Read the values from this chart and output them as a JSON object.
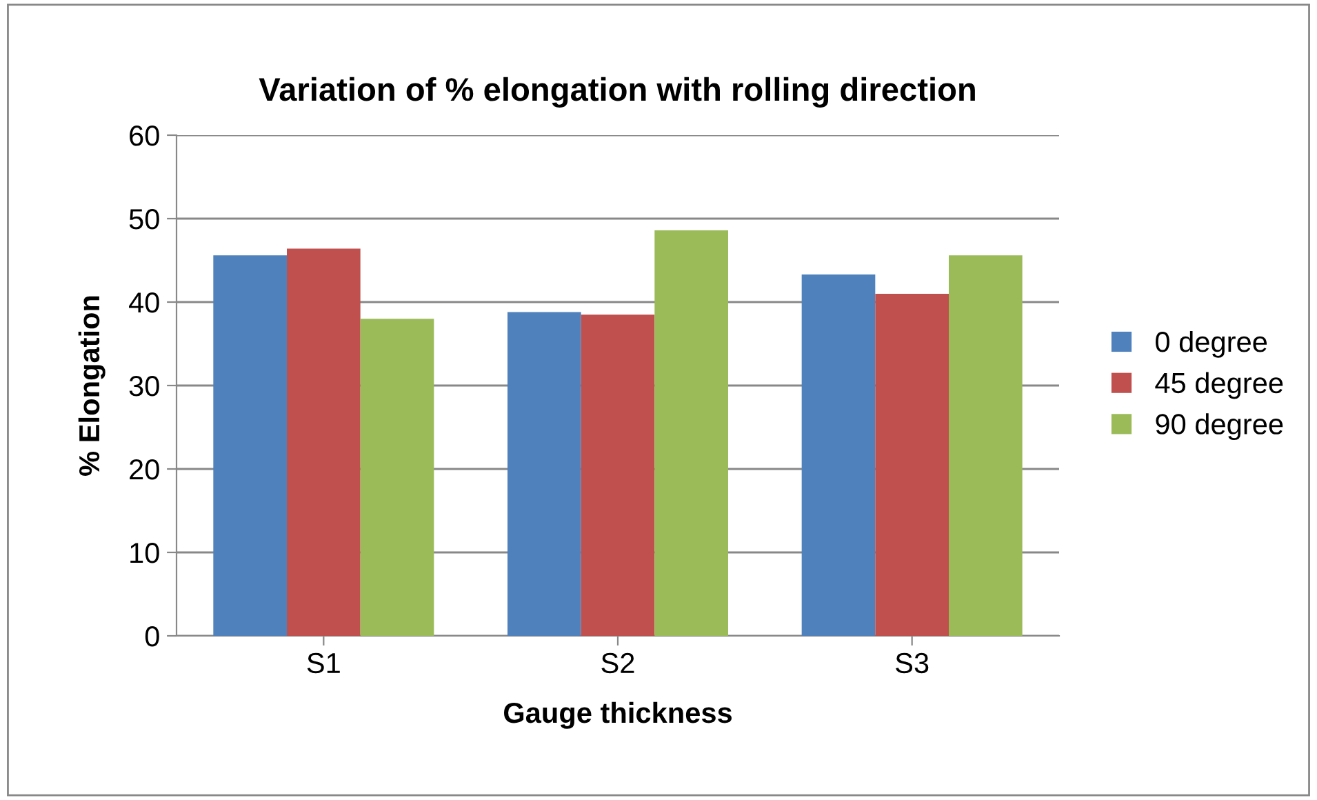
{
  "chart_data": {
    "type": "bar",
    "title": "Variation of % elongation with rolling direction",
    "xlabel": "Gauge thickness",
    "ylabel": "% Elongation",
    "categories": [
      "S1",
      "S2",
      "S3"
    ],
    "series": [
      {
        "name": "0 degree",
        "color": "#4f81bd",
        "values": [
          45.6,
          38.8,
          43.3
        ]
      },
      {
        "name": "45 degree",
        "color": "#c0504d",
        "values": [
          46.4,
          38.5,
          41.0
        ]
      },
      {
        "name": "90 degree",
        "color": "#9bbb59",
        "values": [
          38.0,
          48.6,
          45.6
        ]
      }
    ],
    "ylim": [
      0,
      60
    ],
    "yticks": [
      0,
      10,
      20,
      30,
      40,
      50,
      60
    ],
    "grid": "y",
    "legend": "right"
  }
}
